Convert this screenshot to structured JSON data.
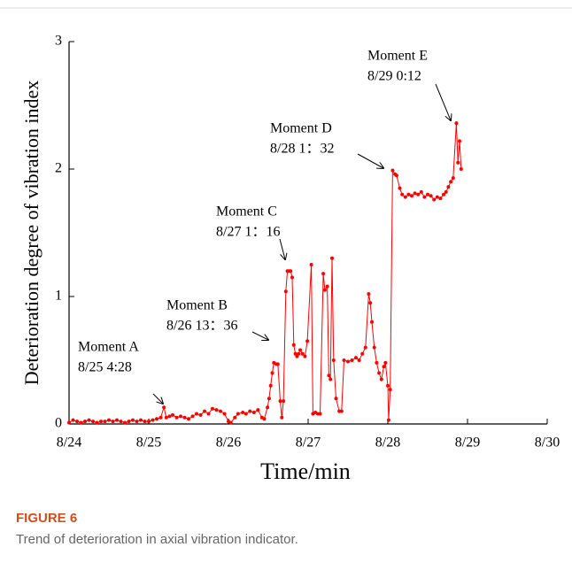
{
  "chart_data": {
    "type": "line",
    "xlabel": "Time/min",
    "ylabel": "Deterioration degree of vibration index",
    "xlim": [
      24,
      30
    ],
    "xticks": [
      {
        "value": 24,
        "label": "8/24"
      },
      {
        "value": 25,
        "label": "8/25"
      },
      {
        "value": 26,
        "label": "8/26"
      },
      {
        "value": 27,
        "label": "8/27"
      },
      {
        "value": 28,
        "label": "8/28"
      },
      {
        "value": 29,
        "label": "8/29"
      },
      {
        "value": 30,
        "label": "8/30"
      }
    ],
    "ylim": [
      0,
      3
    ],
    "yticks": [
      0,
      1,
      2,
      3
    ],
    "color": "#ff0000",
    "x": [
      24,
      24.05,
      24.1,
      24.15,
      24.2,
      24.25,
      24.3,
      24.35,
      24.4,
      24.45,
      24.5,
      24.55,
      24.6,
      24.65,
      24.7,
      24.75,
      24.8,
      24.85,
      24.9,
      24.95,
      25,
      25.05,
      25.1,
      25.15,
      25.19,
      25.22,
      25.26,
      25.3,
      25.35,
      25.4,
      25.45,
      25.5,
      25.55,
      25.6,
      25.65,
      25.7,
      25.75,
      25.8,
      25.85,
      25.9,
      25.95,
      26,
      26.03,
      26.08,
      26.12,
      26.18,
      26.22,
      26.27,
      26.32,
      26.37,
      26.42,
      26.45,
      26.49,
      26.51,
      26.53,
      26.55,
      26.57,
      26.6,
      26.62,
      26.65,
      26.67,
      26.69,
      26.72,
      26.74,
      26.76,
      26.78,
      26.8,
      26.82,
      26.84,
      26.86,
      26.88,
      26.9,
      26.93,
      26.96,
      26.99,
      27.04,
      27.06,
      27.09,
      27.12,
      27.15,
      27.19,
      27.21,
      27.24,
      27.26,
      27.28,
      27.3,
      27.32,
      27.35,
      27.39,
      27.42,
      27.45,
      27.5,
      27.55,
      27.6,
      27.64,
      27.68,
      27.72,
      27.76,
      27.78,
      27.8,
      27.83,
      27.86,
      27.89,
      27.92,
      27.95,
      27.97,
      28,
      28.01,
      28.03,
      28.06,
      28.09,
      28.11,
      28.15,
      28.18,
      28.22,
      28.26,
      28.3,
      28.34,
      28.38,
      28.42,
      28.46,
      28.5,
      28.54,
      28.58,
      28.62,
      28.66,
      28.7,
      28.73,
      28.76,
      28.79,
      28.82,
      28.86,
      28.88,
      28.9,
      28.92
    ],
    "values": [
      0.01,
      0.03,
      0.02,
      0.01,
      0.02,
      0.03,
      0.02,
      0.01,
      0.02,
      0.02,
      0.03,
      0.02,
      0.03,
      0.02,
      0.01,
      0.02,
      0.03,
      0.02,
      0.03,
      0.02,
      0.02,
      0.03,
      0.04,
      0.05,
      0.13,
      0.05,
      0.06,
      0.07,
      0.05,
      0.06,
      0.05,
      0.04,
      0.06,
      0.08,
      0.07,
      0.1,
      0.08,
      0.12,
      0.11,
      0.1,
      0.08,
      0.02,
      0.01,
      0.05,
      0.08,
      0.09,
      0.08,
      0.1,
      0.09,
      0.11,
      0.05,
      0.04,
      0.13,
      0.2,
      0.3,
      0.4,
      0.48,
      0.47,
      0.47,
      0.18,
      0.05,
      0.18,
      1.04,
      1.2,
      1.2,
      1.2,
      1.15,
      0.62,
      0.55,
      0.53,
      0.55,
      0.58,
      0.55,
      0.53,
      0.65,
      1.25,
      0.08,
      0.09,
      0.08,
      0.08,
      1.18,
      1.05,
      1.08,
      0.38,
      0.35,
      1.3,
      0.5,
      0.2,
      0.1,
      0.1,
      0.5,
      0.49,
      0.5,
      0.52,
      0.5,
      0.55,
      0.6,
      1.02,
      0.95,
      0.8,
      0.6,
      0.48,
      0.4,
      0.35,
      0.45,
      0.48,
      0.3,
      0.03,
      0.27,
      1.99,
      1.96,
      1.95,
      1.85,
      1.8,
      1.78,
      1.8,
      1.79,
      1.81,
      1.8,
      1.82,
      1.78,
      1.8,
      1.79,
      1.76,
      1.78,
      1.77,
      1.8,
      1.82,
      1.86,
      1.9,
      1.93,
      2.36,
      2.05,
      2.22,
      2.0
    ],
    "annotations": [
      [
        "Moment A",
        "8/25 4:28"
      ],
      [
        "Moment B",
        "8/26 13：36"
      ],
      [
        "Moment C",
        "8/27 1：16"
      ],
      [
        "Moment D",
        "8/28 1：32"
      ],
      [
        "Moment E",
        "8/29 0:12"
      ]
    ]
  },
  "figure": {
    "label": "FIGURE 6",
    "caption": "Trend of deterioration in axial vibration indicator."
  }
}
